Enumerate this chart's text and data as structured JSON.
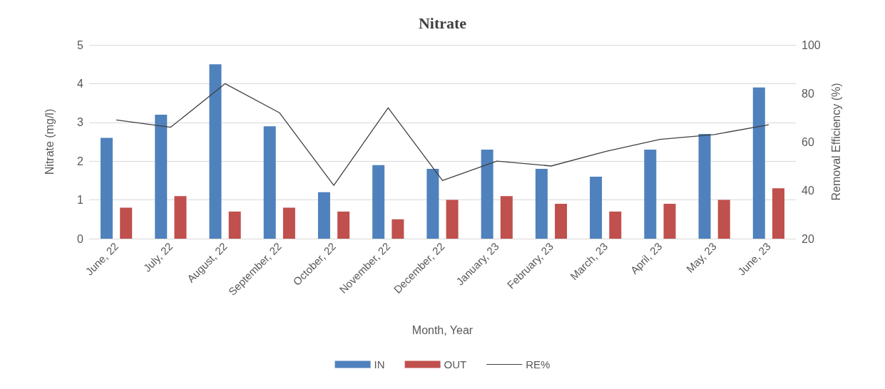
{
  "chart_data": {
    "type": "bar",
    "title": "Nitrate",
    "xlabel": "Month, Year",
    "ylabel": "Nitrate (mg/l)",
    "y2label": "Removal Efficiency (%)",
    "categories": [
      "June, 22",
      "July, 22",
      "August, 22",
      "September, 22",
      "October, 22",
      "November, 22",
      "December, 22",
      "January, 23",
      "February, 23",
      "March, 23",
      "April, 23",
      "May, 23",
      "June, 23"
    ],
    "series": [
      {
        "name": "IN",
        "color": "#4f81bd",
        "values": [
          2.6,
          3.2,
          4.5,
          2.9,
          1.2,
          1.9,
          1.8,
          2.3,
          1.8,
          1.6,
          2.3,
          2.7,
          3.9
        ]
      },
      {
        "name": "OUT",
        "color": "#c0504d",
        "values": [
          0.8,
          1.1,
          0.7,
          0.8,
          0.7,
          0.5,
          1.0,
          1.1,
          0.9,
          0.7,
          0.9,
          1.0,
          1.3
        ]
      },
      {
        "name": "RE%",
        "type": "line",
        "axis": "y2",
        "color": "#404040",
        "values": [
          69,
          66,
          84,
          72,
          42,
          74,
          44,
          52,
          50,
          56,
          61,
          63,
          67
        ]
      }
    ],
    "ylim": [
      0,
      5
    ],
    "yticks": [
      0,
      1,
      2,
      3,
      4,
      5
    ],
    "y2lim": [
      20,
      100
    ],
    "y2ticks": [
      20,
      40,
      60,
      80,
      100
    ],
    "grid": "y",
    "legend": "bottom",
    "marker": "none",
    "line_style": "solid"
  }
}
